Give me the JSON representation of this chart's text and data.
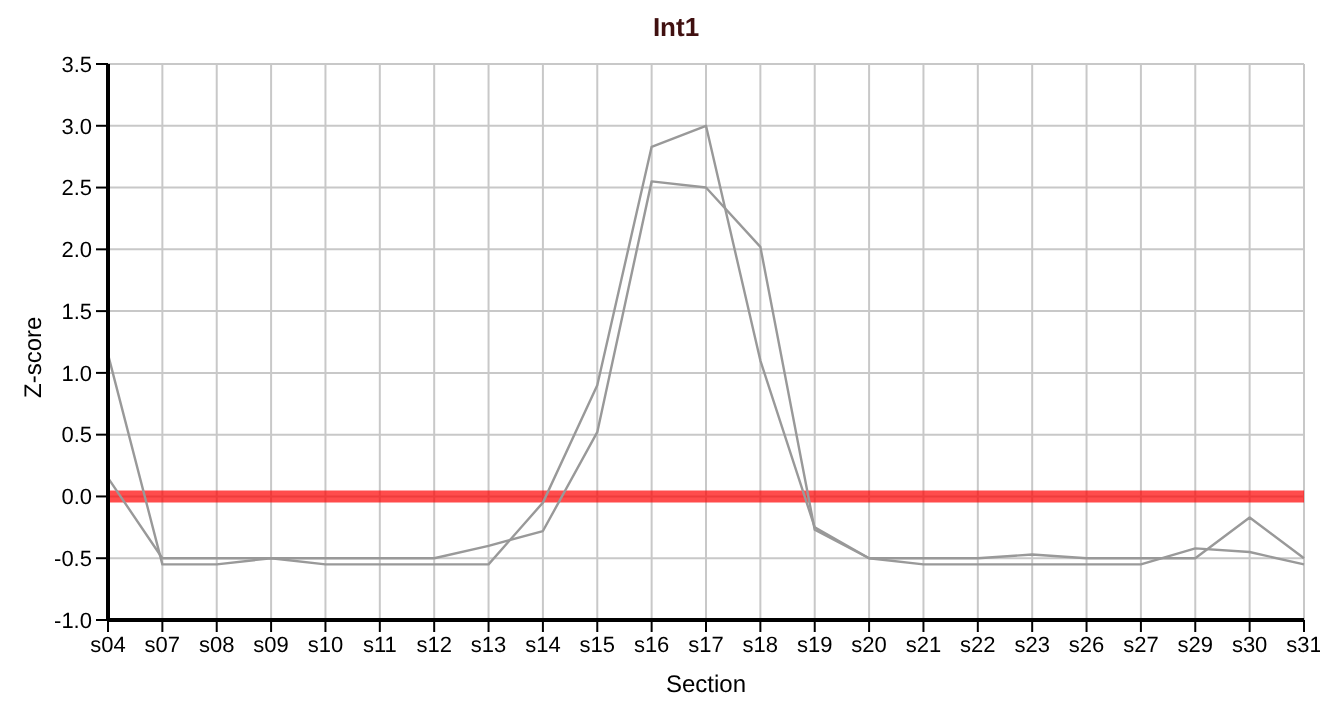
{
  "chart_data": {
    "type": "line",
    "title": "Int1",
    "xlabel": "Section",
    "ylabel": "Z-score",
    "categories": [
      "s04",
      "s07",
      "s08",
      "s09",
      "s10",
      "s11",
      "s12",
      "s13",
      "s14",
      "s15",
      "s16",
      "s17",
      "s18",
      "s19",
      "s20",
      "s21",
      "s22",
      "s23",
      "s26",
      "s27",
      "s29",
      "s30",
      "s31"
    ],
    "series": [
      {
        "color": "#999999",
        "values": [
          1.15,
          -0.55,
          -0.55,
          -0.5,
          -0.55,
          -0.55,
          -0.55,
          -0.55,
          -0.05,
          0.9,
          2.83,
          3.0,
          1.1,
          -0.25,
          -0.5,
          -0.55,
          -0.55,
          -0.55,
          -0.55,
          -0.55,
          -0.42,
          -0.45,
          -0.55
        ]
      },
      {
        "color": "#999999",
        "values": [
          0.15,
          -0.5,
          -0.5,
          -0.5,
          -0.5,
          -0.5,
          -0.5,
          -0.4,
          -0.28,
          0.52,
          2.55,
          2.5,
          2.02,
          -0.27,
          -0.5,
          -0.5,
          -0.5,
          -0.47,
          -0.5,
          -0.5,
          -0.5,
          -0.17,
          -0.5
        ]
      }
    ],
    "ylim": [
      -1,
      3.5
    ],
    "yticks": [
      {
        "value": -1,
        "label": "-1.0"
      },
      {
        "value": -0.5,
        "label": "-0.5"
      },
      {
        "value": 0,
        "label": "0.0"
      },
      {
        "value": 0.5,
        "label": "0.5"
      },
      {
        "value": 1,
        "label": "1.0"
      },
      {
        "value": 1.5,
        "label": "1.5"
      },
      {
        "value": 2,
        "label": "2.0"
      },
      {
        "value": 2.5,
        "label": "2.5"
      },
      {
        "value": 3,
        "label": "3.0"
      },
      {
        "value": 3.5,
        "label": "3.5"
      }
    ],
    "ref_lines": [
      {
        "axis": "y",
        "value": 0,
        "color": "#ff0000"
      }
    ],
    "grid": true,
    "legend": false,
    "marker": "none",
    "line_style": "solid"
  }
}
